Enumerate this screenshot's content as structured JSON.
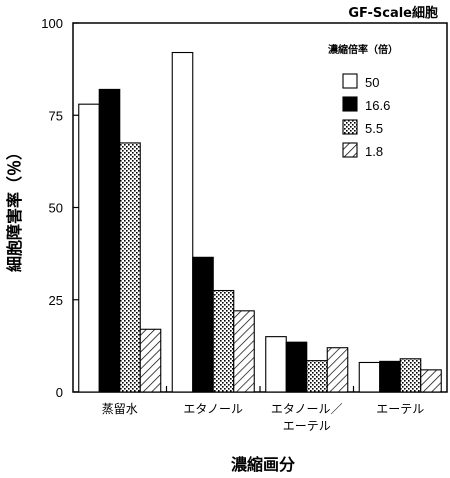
{
  "chart_data": {
    "type": "bar",
    "title": "GF-Scale細胞",
    "ylabel": "細胞障害率（％）",
    "xlabel": "濃縮画分",
    "ylim": [
      0,
      100
    ],
    "yticks": [
      0,
      25,
      50,
      75,
      100
    ],
    "categories": [
      [
        "蒸留水"
      ],
      [
        "エタノール"
      ],
      [
        "エタノール／",
        "エーテル"
      ],
      [
        "エーテル"
      ]
    ],
    "legend_title": "濃縮倍率（倍）",
    "legend_position": "top-right",
    "grid": false,
    "series": [
      {
        "name": "50",
        "pattern": "white",
        "values": [
          78,
          92,
          15,
          8
        ]
      },
      {
        "name": "16.6",
        "pattern": "black",
        "values": [
          82,
          36.5,
          13.5,
          8.3
        ]
      },
      {
        "name": "5.5",
        "pattern": "dotted",
        "values": [
          67.5,
          27.5,
          8.5,
          9
        ]
      },
      {
        "name": "1.8",
        "pattern": "hatched",
        "values": [
          17,
          22,
          12,
          6
        ]
      }
    ]
  }
}
